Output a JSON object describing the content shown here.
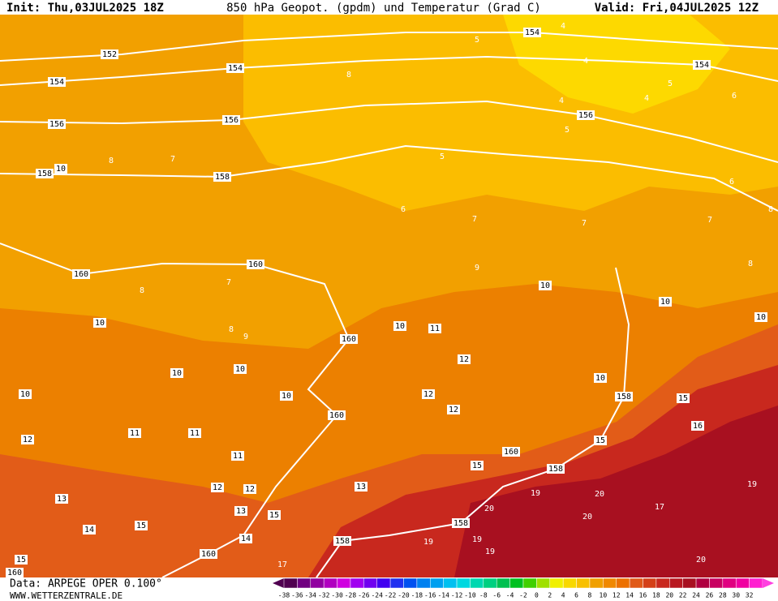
{
  "header": {
    "init": "Init: Thu,03JUL2025 18Z",
    "title": "850 hPa Geopot. (gpdm) und Temperatur (Grad C)",
    "valid": "Valid: Fri,04JUL2025 12Z"
  },
  "footer": {
    "data": "Data: ARPEGE OPER 0.100°",
    "site": "WWW.WETTERZENTRALE.DE"
  },
  "colorbar": {
    "labels": [
      -38,
      -36,
      -34,
      -32,
      -30,
      -28,
      -26,
      -24,
      -22,
      -20,
      -18,
      -16,
      -14,
      -12,
      -10,
      -8,
      -6,
      -4,
      -2,
      0,
      2,
      4,
      6,
      8,
      10,
      12,
      14,
      16,
      18,
      20,
      22,
      24,
      26,
      28,
      30,
      32
    ]
  },
  "height_labels": [
    154,
    152,
    154,
    154,
    154,
    156,
    156,
    156,
    158,
    158,
    160,
    160,
    160,
    160,
    160,
    158,
    158,
    158,
    158,
    160,
    160
  ],
  "temp_labels": [
    10,
    10,
    10,
    10,
    10,
    10,
    10,
    10,
    10,
    10,
    10,
    11,
    12,
    12,
    12,
    11,
    11,
    11,
    12,
    12,
    13,
    15,
    14,
    15,
    14,
    13,
    12,
    15,
    15,
    15,
    15,
    20,
    20,
    20,
    20,
    17,
    19,
    16,
    5,
    5,
    5,
    5,
    4,
    4,
    4,
    4,
    6,
    6,
    7,
    7,
    8,
    8,
    6,
    7,
    8,
    8,
    7,
    9,
    8,
    7,
    8,
    9,
    19,
    19,
    19,
    19,
    17,
    13
  ]
}
